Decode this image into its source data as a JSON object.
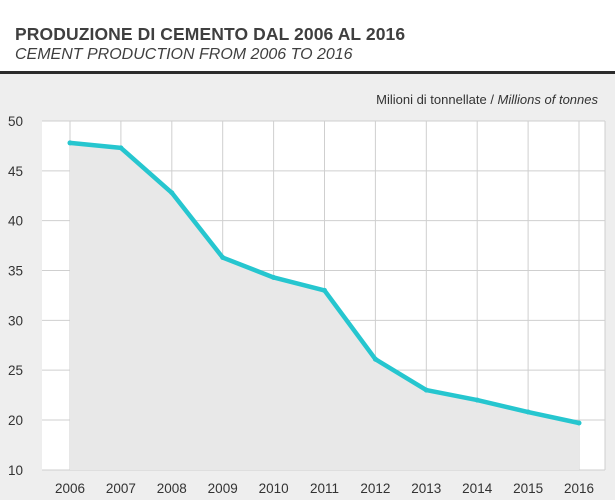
{
  "header": {
    "title_it": "PRODUZIONE DI CEMENTO DAL 2006 AL 2016",
    "title_en": "CEMENT PRODUCTION FROM 2006 TO 2016"
  },
  "unit": {
    "it": "Milioni di tonnellate",
    "separator": " / ",
    "en": "Millions of tonnes"
  },
  "colors": {
    "line": "#26c6cf",
    "area": "#e8e8e8",
    "plot_background": "#ffffff",
    "grid": "#cfcfcf",
    "outer_background": "#eeeeee"
  },
  "chart_data": {
    "type": "area",
    "title": "PRODUZIONE DI CEMENTO DAL 2006 AL 2016",
    "subtitle": "CEMENT PRODUCTION FROM 2006 TO 2016",
    "xlabel": "",
    "ylabel": "Milioni di tonnellate / Millions of tonnes",
    "categories": [
      "2006",
      "2007",
      "2008",
      "2009",
      "2010",
      "2011",
      "2012",
      "2013",
      "2014",
      "2015",
      "2016"
    ],
    "series": [
      {
        "values": [
          47.8,
          47.3,
          42.8,
          36.3,
          34.3,
          33.0,
          26.1,
          23.0,
          22.0,
          20.8,
          19.4
        ]
      }
    ],
    "ylim": [
      10,
      50
    ],
    "yticks": [
      10,
      20,
      25,
      30,
      35,
      40,
      45,
      50
    ],
    "grid": true,
    "legend": "none"
  }
}
